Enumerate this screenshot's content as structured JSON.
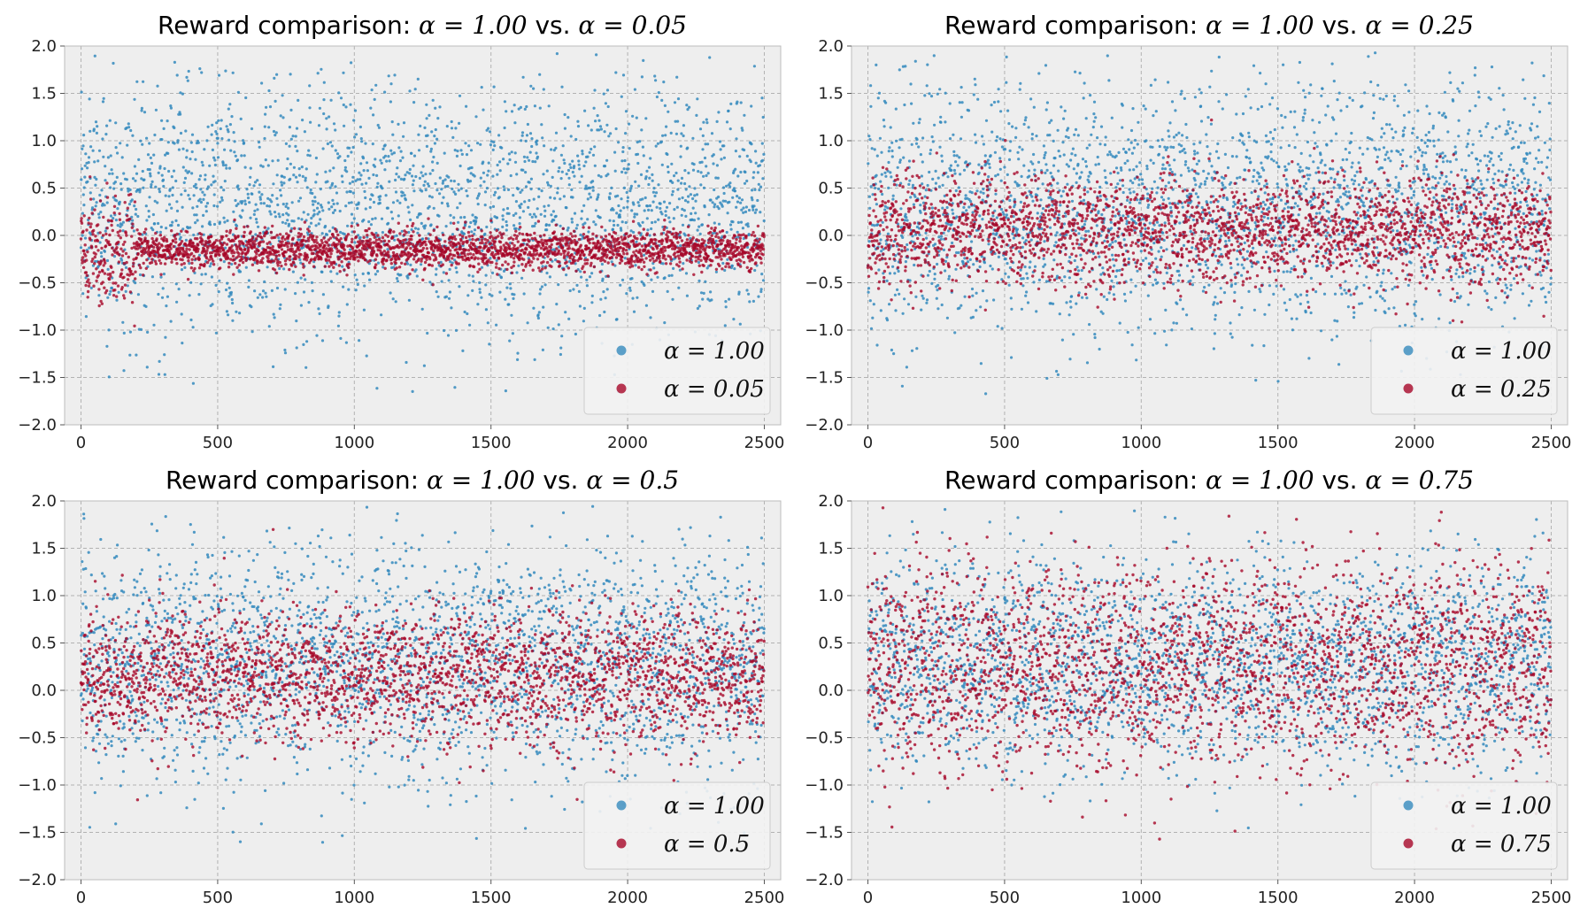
{
  "colors": {
    "series_a": "#348ABD",
    "series_b": "#A60628",
    "panel_bg": "#EEEEEE",
    "grid": "#B2B2B2"
  },
  "chart_data": [
    {
      "type": "scatter",
      "title": "Reward comparison: α = 1.00 vs. α = 0.05",
      "title_prefix": "Reward comparison: ",
      "title_math_a": "α = 1.00",
      "title_vs": " vs. ",
      "title_math_b": "α = 0.05",
      "xlim": [
        -60,
        2560
      ],
      "ylim": [
        -2.0,
        2.0
      ],
      "xticks": [
        0,
        500,
        1000,
        1500,
        2000,
        2500
      ],
      "yticks": [
        -2.0,
        -1.5,
        -1.0,
        -0.5,
        0.0,
        0.5,
        1.0,
        1.5,
        2.0
      ],
      "grid": true,
      "legend_position": "lower right",
      "n_points_per_series": 2500,
      "series": [
        {
          "name": "α = 1.00",
          "color": "#348ABD",
          "mean_level": 0.3,
          "spread": 0.65,
          "clip": [
            -1.7,
            1.95
          ]
        },
        {
          "name": "α = 0.05",
          "color": "#A60628",
          "mean_level": -0.15,
          "spread": 0.1,
          "clip": [
            -1.0,
            1.7
          ]
        }
      ]
    },
    {
      "type": "scatter",
      "title": "Reward comparison: α = 1.00 vs. α = 0.25",
      "title_prefix": "Reward comparison: ",
      "title_math_a": "α = 1.00",
      "title_vs": " vs. ",
      "title_math_b": "α = 0.25",
      "xlim": [
        -60,
        2560
      ],
      "ylim": [
        -2.0,
        2.0
      ],
      "xticks": [
        0,
        500,
        1000,
        1500,
        2000,
        2500
      ],
      "yticks": [
        -2.0,
        -1.5,
        -1.0,
        -0.5,
        0.0,
        0.5,
        1.0,
        1.5,
        2.0
      ],
      "grid": true,
      "legend_position": "lower right",
      "n_points_per_series": 2500,
      "series": [
        {
          "name": "α = 1.00",
          "color": "#348ABD",
          "mean_level": 0.3,
          "spread": 0.65,
          "clip": [
            -1.7,
            1.95
          ]
        },
        {
          "name": "α = 0.25",
          "color": "#A60628",
          "mean_level": 0.05,
          "spread": 0.28,
          "clip": [
            -1.0,
            1.6
          ]
        }
      ]
    },
    {
      "type": "scatter",
      "title": "Reward comparison: α = 1.00 vs. α = 0.5",
      "title_prefix": "Reward comparison: ",
      "title_math_a": "α = 1.00",
      "title_vs": " vs. ",
      "title_math_b": "α = 0.5",
      "xlim": [
        -60,
        2560
      ],
      "ylim": [
        -2.0,
        2.0
      ],
      "xticks": [
        0,
        500,
        1000,
        1500,
        2000,
        2500
      ],
      "yticks": [
        -2.0,
        -1.5,
        -1.0,
        -0.5,
        0.0,
        0.5,
        1.0,
        1.5,
        2.0
      ],
      "grid": true,
      "legend_position": "lower right",
      "n_points_per_series": 2500,
      "series": [
        {
          "name": "α = 1.00",
          "color": "#348ABD",
          "mean_level": 0.3,
          "spread": 0.65,
          "clip": [
            -1.7,
            1.95
          ]
        },
        {
          "name": "α = 0.5",
          "color": "#A60628",
          "mean_level": 0.15,
          "spread": 0.35,
          "clip": [
            -1.75,
            1.7
          ]
        }
      ]
    },
    {
      "type": "scatter",
      "title": "Reward comparison: α = 1.00 vs. α = 0.75",
      "title_prefix": "Reward comparison: ",
      "title_math_a": "α = 1.00",
      "title_vs": " vs. ",
      "title_math_b": "α = 0.75",
      "xlim": [
        -60,
        2560
      ],
      "ylim": [
        -2.0,
        2.0
      ],
      "xticks": [
        0,
        500,
        1000,
        1500,
        2000,
        2500
      ],
      "yticks": [
        -2.0,
        -1.5,
        -1.0,
        -0.5,
        0.0,
        0.5,
        1.0,
        1.5,
        2.0
      ],
      "grid": true,
      "legend_position": "lower right",
      "n_points_per_series": 2500,
      "series": [
        {
          "name": "α = 1.00",
          "color": "#348ABD",
          "mean_level": 0.3,
          "spread": 0.55,
          "clip": [
            -1.7,
            1.95
          ]
        },
        {
          "name": "α = 0.75",
          "color": "#A60628",
          "mean_level": 0.25,
          "spread": 0.55,
          "clip": [
            -1.85,
            1.95
          ]
        }
      ]
    }
  ]
}
